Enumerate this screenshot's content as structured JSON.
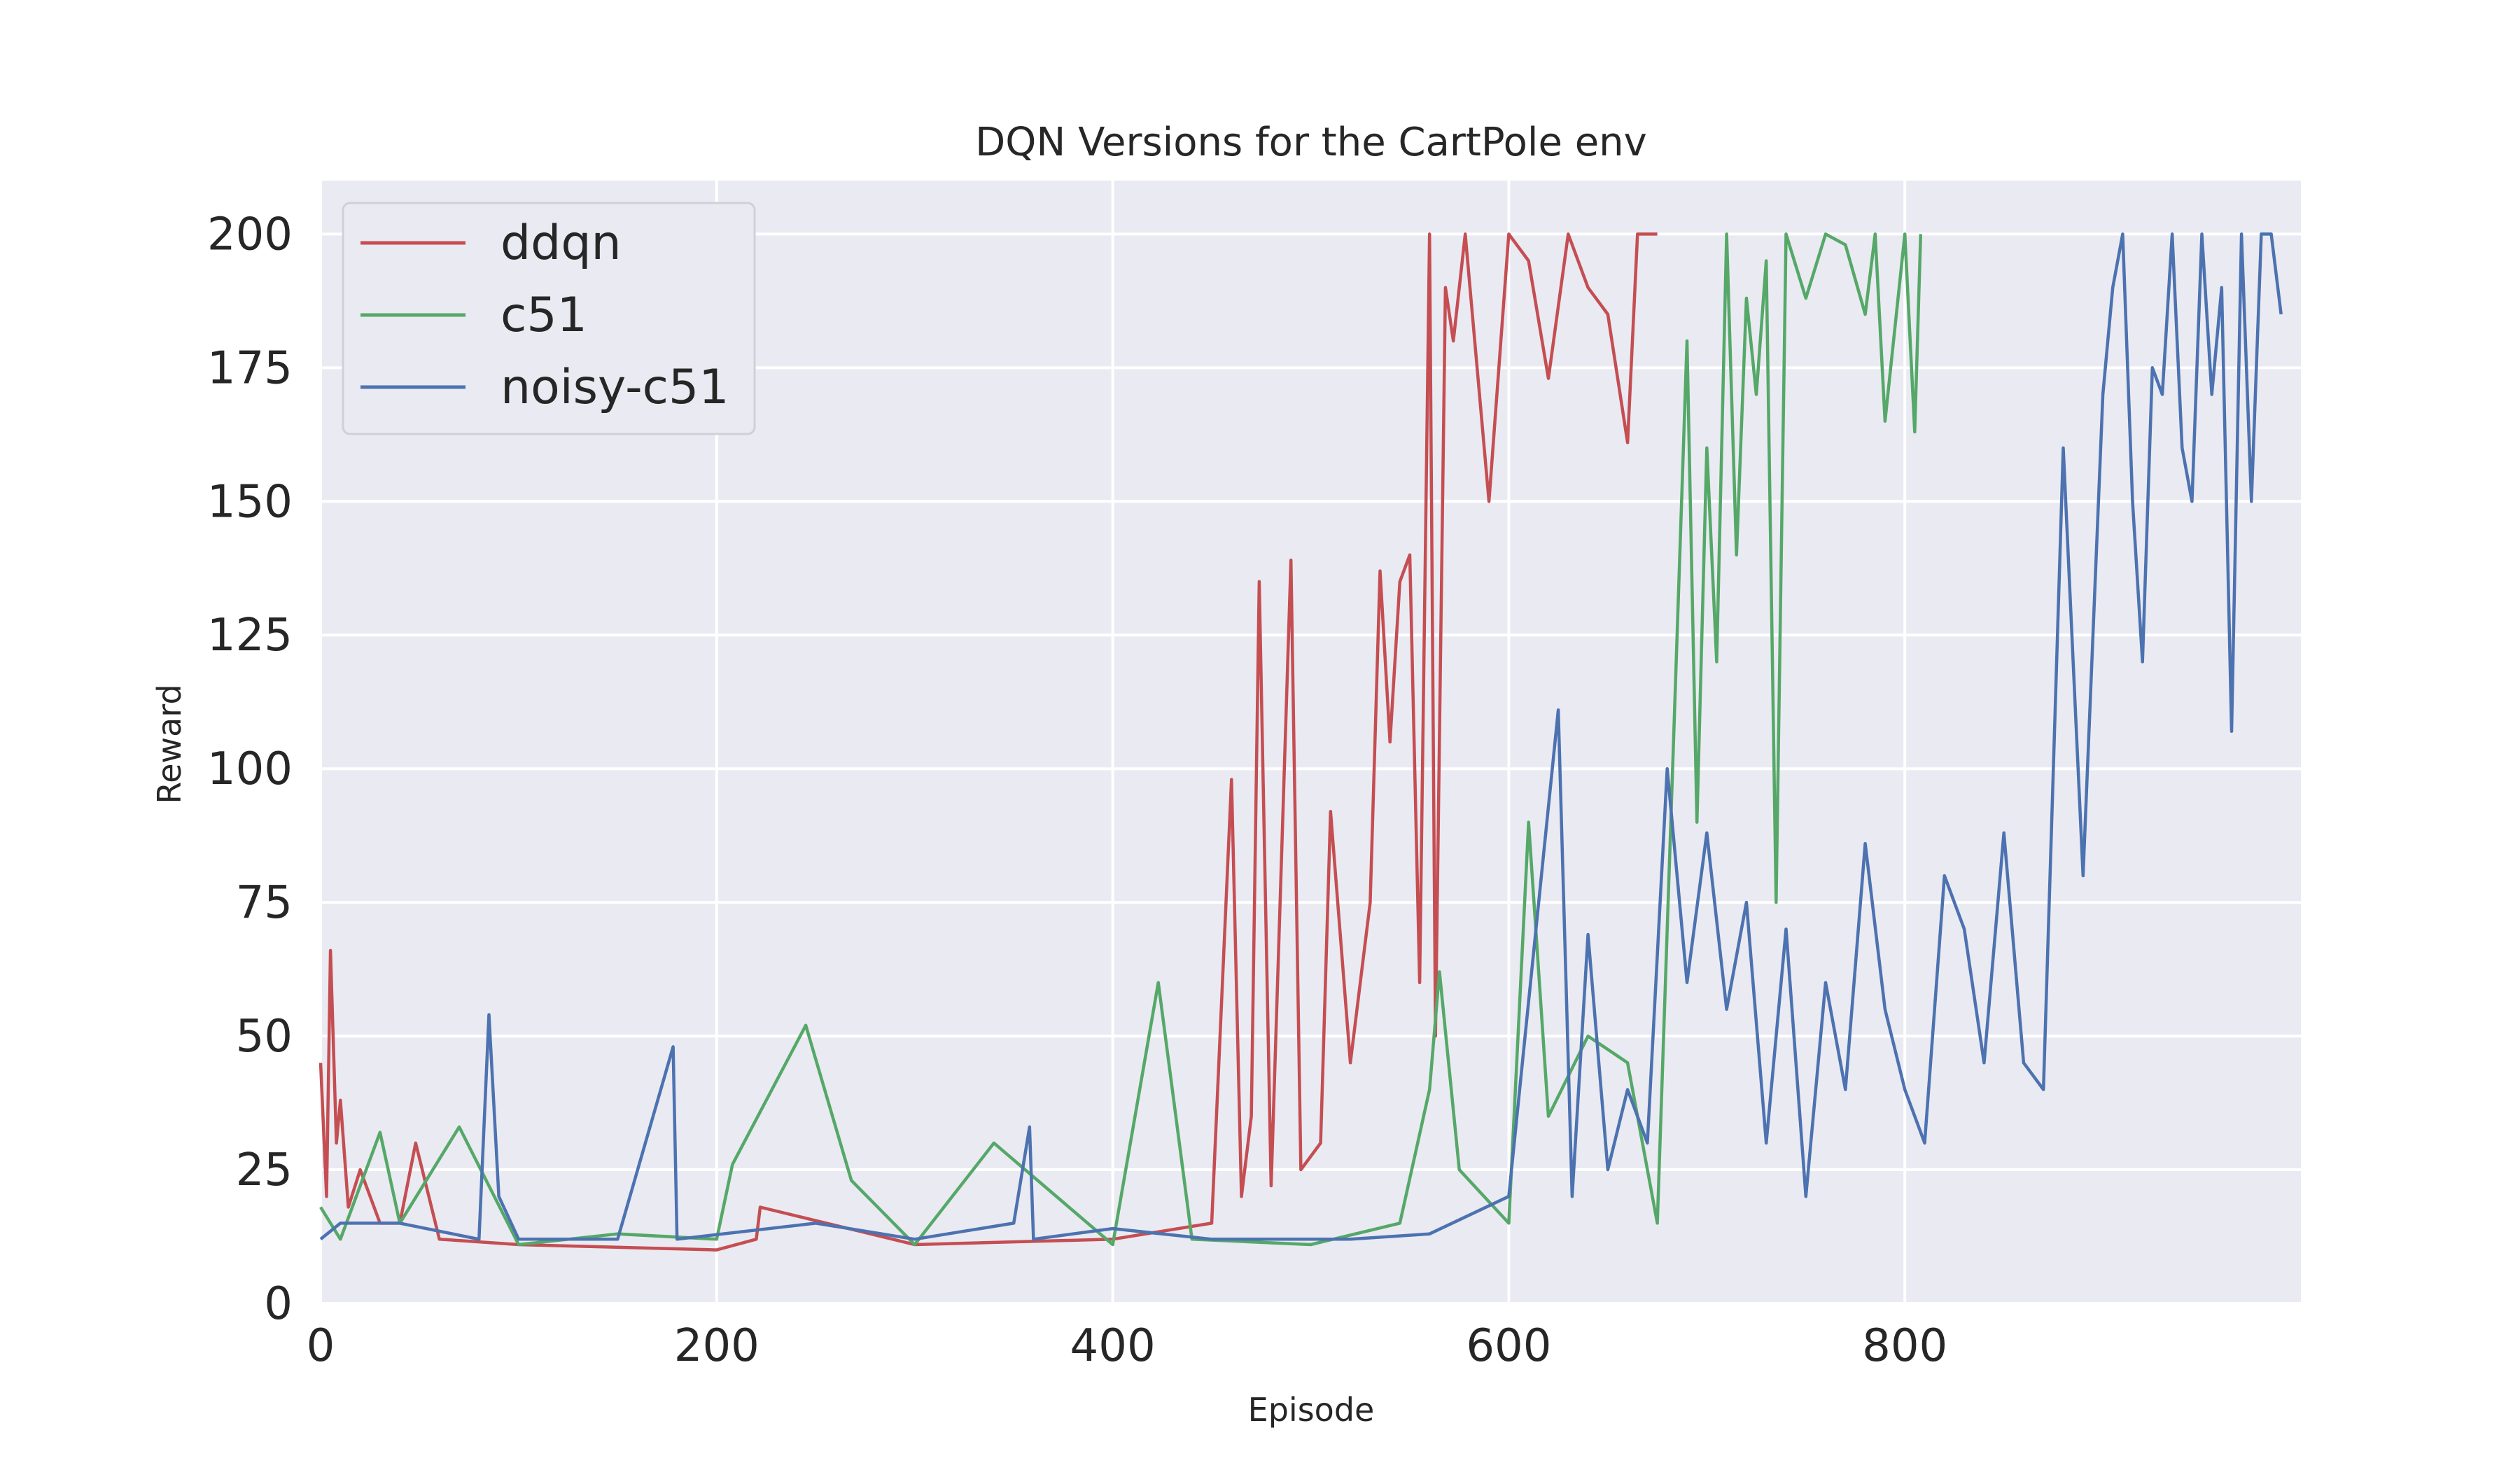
{
  "chart_data": {
    "type": "line",
    "title": "DQN Versions for the CartPole env",
    "xlabel": "Episode",
    "ylabel": "Reward",
    "xlim": [
      0,
      1000
    ],
    "ylim": [
      0,
      210
    ],
    "xticks": [
      0,
      200,
      400,
      600,
      800
    ],
    "yticks": [
      0,
      25,
      50,
      75,
      100,
      125,
      150,
      175,
      200
    ],
    "grid": true,
    "background": "#eaeaf2",
    "legend": "top-left",
    "series": [
      {
        "name": "ddqn",
        "color": "#c44e52",
        "points": [
          [
            0,
            45
          ],
          [
            3,
            20
          ],
          [
            5,
            66
          ],
          [
            8,
            30
          ],
          [
            10,
            38
          ],
          [
            14,
            18
          ],
          [
            20,
            25
          ],
          [
            30,
            15
          ],
          [
            40,
            15
          ],
          [
            48,
            30
          ],
          [
            60,
            12
          ],
          [
            100,
            11
          ],
          [
            200,
            10
          ],
          [
            220,
            12
          ],
          [
            222,
            18
          ],
          [
            300,
            11
          ],
          [
            400,
            12
          ],
          [
            450,
            15
          ],
          [
            460,
            98
          ],
          [
            465,
            20
          ],
          [
            470,
            35
          ],
          [
            474,
            135
          ],
          [
            480,
            22
          ],
          [
            490,
            139
          ],
          [
            495,
            25
          ],
          [
            505,
            30
          ],
          [
            510,
            92
          ],
          [
            520,
            45
          ],
          [
            530,
            75
          ],
          [
            535,
            137
          ],
          [
            540,
            105
          ],
          [
            545,
            135
          ],
          [
            550,
            140
          ],
          [
            555,
            60
          ],
          [
            560,
            200
          ],
          [
            563,
            50
          ],
          [
            568,
            190
          ],
          [
            572,
            180
          ],
          [
            578,
            200
          ],
          [
            590,
            150
          ],
          [
            600,
            200
          ],
          [
            610,
            195
          ],
          [
            620,
            173
          ],
          [
            630,
            200
          ],
          [
            640,
            190
          ],
          [
            650,
            185
          ],
          [
            660,
            161
          ],
          [
            665,
            200
          ],
          [
            675,
            200
          ]
        ]
      },
      {
        "name": "c51",
        "color": "#55a868",
        "points": [
          [
            0,
            18
          ],
          [
            10,
            12
          ],
          [
            30,
            32
          ],
          [
            40,
            15
          ],
          [
            70,
            33
          ],
          [
            100,
            11
          ],
          [
            150,
            13
          ],
          [
            200,
            12
          ],
          [
            208,
            26
          ],
          [
            245,
            52
          ],
          [
            268,
            23
          ],
          [
            300,
            11
          ],
          [
            340,
            30
          ],
          [
            400,
            11
          ],
          [
            423,
            60
          ],
          [
            440,
            12
          ],
          [
            500,
            11
          ],
          [
            545,
            15
          ],
          [
            560,
            40
          ],
          [
            565,
            62
          ],
          [
            575,
            25
          ],
          [
            600,
            15
          ],
          [
            610,
            90
          ],
          [
            620,
            35
          ],
          [
            640,
            50
          ],
          [
            660,
            45
          ],
          [
            675,
            15
          ],
          [
            690,
            180
          ],
          [
            695,
            90
          ],
          [
            700,
            160
          ],
          [
            705,
            120
          ],
          [
            710,
            200
          ],
          [
            715,
            140
          ],
          [
            720,
            188
          ],
          [
            725,
            170
          ],
          [
            730,
            195
          ],
          [
            735,
            75
          ],
          [
            740,
            200
          ],
          [
            750,
            188
          ],
          [
            760,
            200
          ],
          [
            770,
            198
          ],
          [
            780,
            185
          ],
          [
            785,
            200
          ],
          [
            790,
            165
          ],
          [
            800,
            200
          ],
          [
            805,
            163
          ],
          [
            808,
            200
          ]
        ]
      },
      {
        "name": "noisy-c51",
        "color": "#4c72b0",
        "points": [
          [
            0,
            12
          ],
          [
            10,
            15
          ],
          [
            40,
            15
          ],
          [
            80,
            12
          ],
          [
            85,
            54
          ],
          [
            90,
            20
          ],
          [
            100,
            12
          ],
          [
            150,
            12
          ],
          [
            178,
            48
          ],
          [
            180,
            12
          ],
          [
            250,
            15
          ],
          [
            300,
            12
          ],
          [
            350,
            15
          ],
          [
            358,
            33
          ],
          [
            360,
            12
          ],
          [
            400,
            14
          ],
          [
            450,
            12
          ],
          [
            520,
            12
          ],
          [
            560,
            13
          ],
          [
            600,
            20
          ],
          [
            625,
            111
          ],
          [
            632,
            20
          ],
          [
            640,
            69
          ],
          [
            650,
            25
          ],
          [
            660,
            40
          ],
          [
            670,
            30
          ],
          [
            680,
            100
          ],
          [
            690,
            60
          ],
          [
            700,
            88
          ],
          [
            710,
            55
          ],
          [
            720,
            75
          ],
          [
            730,
            30
          ],
          [
            740,
            70
          ],
          [
            750,
            20
          ],
          [
            760,
            60
          ],
          [
            770,
            40
          ],
          [
            780,
            86
          ],
          [
            790,
            55
          ],
          [
            800,
            40
          ],
          [
            810,
            30
          ],
          [
            820,
            80
          ],
          [
            830,
            70
          ],
          [
            840,
            45
          ],
          [
            850,
            88
          ],
          [
            860,
            45
          ],
          [
            870,
            40
          ],
          [
            880,
            160
          ],
          [
            890,
            80
          ],
          [
            900,
            170
          ],
          [
            905,
            190
          ],
          [
            910,
            200
          ],
          [
            915,
            150
          ],
          [
            920,
            120
          ],
          [
            925,
            175
          ],
          [
            930,
            170
          ],
          [
            935,
            200
          ],
          [
            940,
            160
          ],
          [
            945,
            150
          ],
          [
            950,
            200
          ],
          [
            955,
            170
          ],
          [
            960,
            190
          ],
          [
            965,
            107
          ],
          [
            970,
            200
          ],
          [
            975,
            150
          ],
          [
            980,
            200
          ],
          [
            985,
            200
          ],
          [
            990,
            185
          ]
        ]
      }
    ]
  }
}
